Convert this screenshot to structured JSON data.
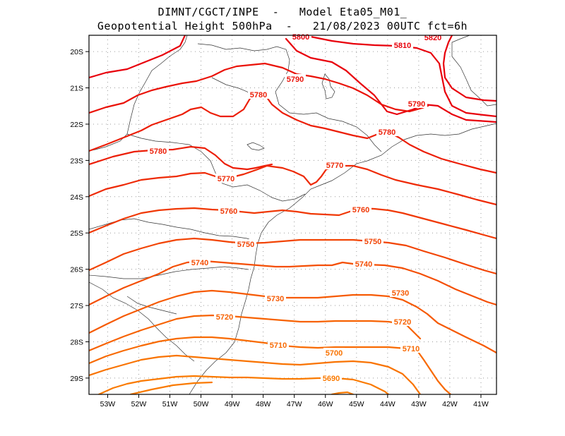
{
  "header": {
    "line1": "DIMNT/CGCT/INPE  -   Model Eta05_M01_",
    "line2": "Geopotential Height 500hPa  -   21/08/2023 00UTC fct=6h"
  },
  "map": {
    "lon_range": [
      -53.6,
      -40.5
    ],
    "lat_range": [
      -29.45,
      -19.55
    ],
    "lon_ticks": [
      "53W",
      "52W",
      "51W",
      "50W",
      "49W",
      "48W",
      "47W",
      "46W",
      "45W",
      "44W",
      "43W",
      "42W",
      "41W"
    ],
    "lat_ticks": [
      "20S",
      "21S",
      "22S",
      "23S",
      "24S",
      "25S",
      "26S",
      "27S",
      "28S",
      "29S"
    ]
  },
  "contours": [
    {
      "value": "5800",
      "color": "#e8000b",
      "label_text": "5800"
    },
    {
      "value": "5810",
      "color": "#e8000b",
      "label_text": "5810"
    },
    {
      "value": "5820",
      "color": "#e8000b",
      "label_text": "5820"
    },
    {
      "value": "5790",
      "color": "#ea1208",
      "label_text": "5790"
    },
    {
      "value": "5780",
      "color": "#ec1e07",
      "label_text": "5780"
    },
    {
      "value": "5770",
      "color": "#ee2a06",
      "label_text": "5770"
    },
    {
      "value": "5760",
      "color": "#f03805",
      "label_text": "5760"
    },
    {
      "value": "5750",
      "color": "#f24404",
      "label_text": "5750"
    },
    {
      "value": "5740",
      "color": "#f44e04",
      "label_text": "5740"
    },
    {
      "value": "5730",
      "color": "#f65a03",
      "label_text": "5730"
    },
    {
      "value": "5720",
      "color": "#f76202",
      "label_text": "5720"
    },
    {
      "value": "5710",
      "color": "#f86a02",
      "label_text": "5710"
    },
    {
      "value": "5700",
      "color": "#f97301",
      "label_text": "5700"
    },
    {
      "value": "5690",
      "color": "#fa7a01",
      "label_text": "5690"
    }
  ]
}
